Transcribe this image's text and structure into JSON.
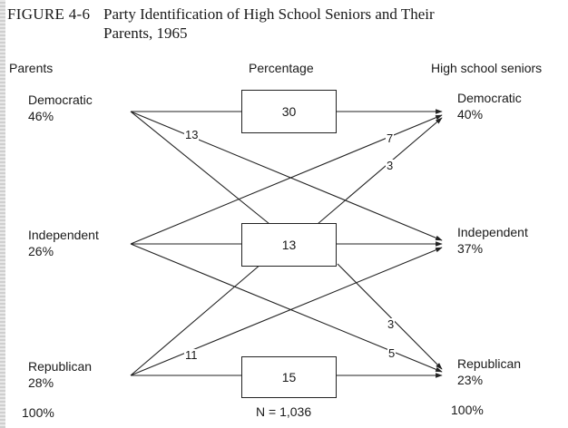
{
  "figure": {
    "number": "FIGURE 4-6",
    "title_line1": "Party Identification of High School Seniors and Their",
    "title_line2": "Parents, 1965"
  },
  "headers": {
    "left": "Parents",
    "center": "Percentage",
    "right": "High school seniors"
  },
  "parents": [
    {
      "party": "Democratic",
      "pct": "46%"
    },
    {
      "party": "Independent",
      "pct": "26%"
    },
    {
      "party": "Republican",
      "pct": "28%"
    }
  ],
  "seniors": [
    {
      "party": "Democratic",
      "pct": "40%"
    },
    {
      "party": "Independent",
      "pct": "37%"
    },
    {
      "party": "Republican",
      "pct": "23%"
    }
  ],
  "boxes": [
    "30",
    "13",
    "15"
  ],
  "flows": [
    {
      "from": "Democratic",
      "to": "Independent",
      "value": "13"
    },
    {
      "from": "Independent",
      "to": "Democratic",
      "value": "7"
    },
    {
      "from": "Independent",
      "to": "Democratic",
      "value": "3"
    },
    {
      "from": "Independent",
      "to": "Republican",
      "value": "3"
    },
    {
      "from": "Democratic",
      "to": "Republican",
      "value": "5"
    },
    {
      "from": "Republican",
      "to": "Independent",
      "value": "11"
    }
  ],
  "totals": {
    "left": "100%",
    "right": "100%",
    "n": "N = 1,036"
  }
}
